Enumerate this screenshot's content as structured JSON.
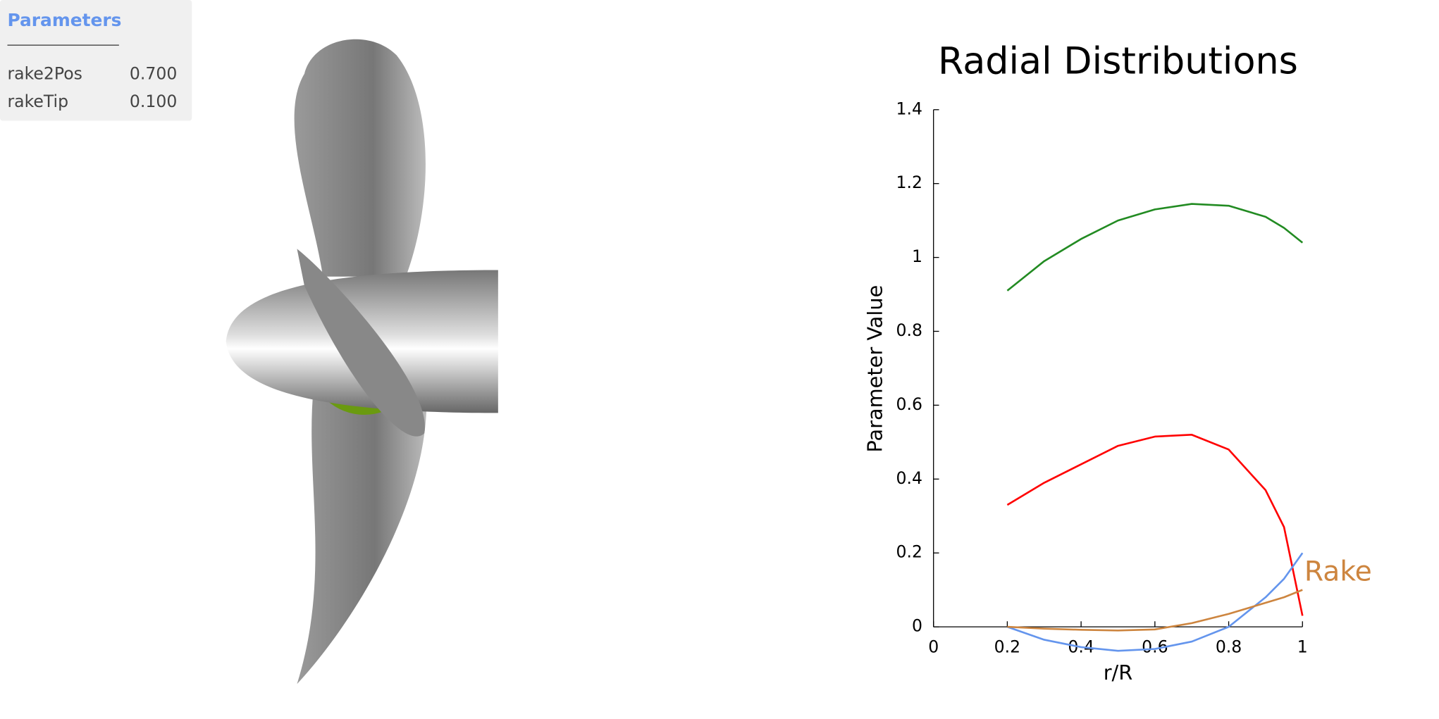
{
  "panel": {
    "title": "Parameters",
    "rows": [
      [
        "rake2Pos",
        "0.700"
      ],
      [
        "rakeTip",
        "0.100"
      ]
    ]
  },
  "chart_data": {
    "type": "line",
    "title": "Radial Distributions",
    "x_label": "r/R",
    "y_label": "Parameter Value",
    "x": [
      0.2,
      0.3,
      0.4,
      0.5,
      0.6,
      0.7,
      0.8,
      0.9,
      0.95,
      1
    ],
    "series": [
      {
        "color": "#228b22",
        "values": [
          0.91,
          0.99,
          1.05,
          1.1,
          1.13,
          1.145,
          1.14,
          1.11,
          1.08,
          1.04
        ]
      },
      {
        "color": "#ff0000",
        "values": [
          0.33,
          0.39,
          0.44,
          0.49,
          0.515,
          0.52,
          0.48,
          0.37,
          0.27,
          0.03
        ]
      },
      {
        "color": "#6495ed",
        "values": [
          0,
          -0.035,
          -0.055,
          -0.065,
          -0.06,
          -0.04,
          0,
          0.08,
          0.13,
          0.2
        ]
      },
      {
        "name": "Rake",
        "color": "#cd853f",
        "values": [
          0,
          -0.005,
          -0.008,
          -0.01,
          -0.007,
          0.01,
          0.035,
          0.065,
          0.08,
          0.1
        ]
      }
    ],
    "xlim": [
      0,
      1
    ],
    "xticks": [
      0,
      0.2,
      0.4,
      0.6,
      0.8,
      1
    ],
    "ylim": [
      0,
      1.4
    ],
    "yticks": [
      0,
      0.2,
      0.4,
      0.6,
      0.8,
      1,
      1.2,
      1.4
    ]
  }
}
